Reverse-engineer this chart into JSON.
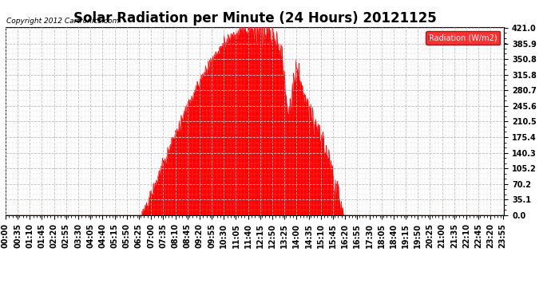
{
  "title": "Solar Radiation per Minute (24 Hours) 20121125",
  "copyright_text": "Copyright 2012 Cartronics.com",
  "legend_label": "Radiation (W/m2)",
  "yticks": [
    0.0,
    35.1,
    70.2,
    105.2,
    140.3,
    175.4,
    210.5,
    245.6,
    280.7,
    315.8,
    350.8,
    385.9,
    421.0
  ],
  "ymax": 421.0,
  "ymin": 0.0,
  "fill_color": "#FF0000",
  "line_color": "#FF0000",
  "grid_color": "#C0C0C0",
  "background_color": "#FFFFFF",
  "plot_bg_color": "#FFFFFF",
  "title_fontsize": 12,
  "tick_fontsize": 7,
  "minutes_per_day": 1440,
  "sunrise_min": 390,
  "sunset_min": 975,
  "peak_min": 710,
  "peak_val": 421.0,
  "xtick_step": 35,
  "seed": 42
}
